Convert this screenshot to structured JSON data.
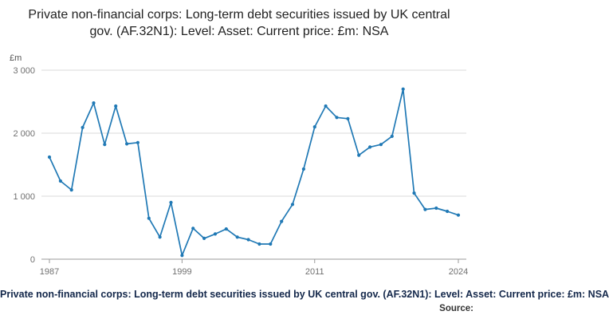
{
  "title": "Private non-financial corps: Long-term debt securities issued by UK central gov. (AF.32N1): Level: Asset: Current price: £m: NSA",
  "footer": {
    "caption": "Private non-financial corps: Long-term debt securities issued by UK central gov. (AF.32N1): Level: Asset: Current price: £m: NSA",
    "source_label": "Source:"
  },
  "chart_data": {
    "type": "line",
    "title": "Private non-financial corps: Long-term debt securities issued by UK central gov. (AF.32N1): Level: Asset: Current price: £m: NSA",
    "xlabel": "",
    "ylabel": "£m",
    "xlim": [
      1987,
      2024
    ],
    "ylim": [
      0,
      3000
    ],
    "x_ticks": [
      1987,
      1999,
      2011,
      2024
    ],
    "y_ticks": [
      0,
      1000,
      2000,
      3000
    ],
    "y_tick_labels": [
      "0",
      "1 000",
      "2 000",
      "3 000"
    ],
    "grid": true,
    "legend_position": "none",
    "marker": "circle",
    "line_color": "#2079b5",
    "grid_color": "#d9d9d9",
    "axis_color": "#9a9a9a",
    "x": [
      1987,
      1988,
      1989,
      1990,
      1991,
      1992,
      1993,
      1994,
      1995,
      1996,
      1997,
      1998,
      1999,
      2000,
      2001,
      2002,
      2003,
      2004,
      2005,
      2006,
      2007,
      2008,
      2009,
      2010,
      2011,
      2012,
      2013,
      2014,
      2015,
      2016,
      2017,
      2018,
      2019,
      2020,
      2021,
      2022,
      2023,
      2024
    ],
    "values": [
      1620,
      1240,
      1100,
      2090,
      2480,
      1820,
      2430,
      1830,
      1850,
      650,
      350,
      900,
      60,
      490,
      330,
      400,
      480,
      350,
      310,
      240,
      240,
      600,
      870,
      1430,
      2100,
      2430,
      2250,
      2230,
      1650,
      1780,
      1820,
      1950,
      2700,
      1050,
      790,
      810,
      760,
      700
    ]
  }
}
